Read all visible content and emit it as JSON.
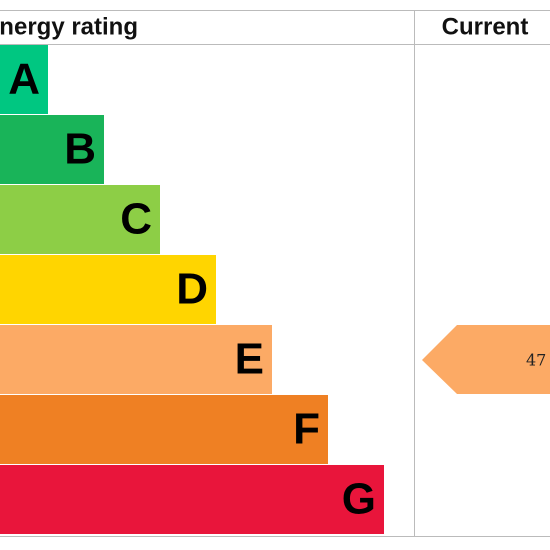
{
  "header": {
    "title": "Energy rating",
    "current": "Current"
  },
  "bands": [
    {
      "letter": "A",
      "color": "#00c781"
    },
    {
      "letter": "B",
      "color": "#19b459"
    },
    {
      "letter": "C",
      "color": "#8dce46"
    },
    {
      "letter": "D",
      "color": "#ffd500"
    },
    {
      "letter": "E",
      "color": "#fcaa65"
    },
    {
      "letter": "F",
      "color": "#ef8023"
    },
    {
      "letter": "G",
      "color": "#e9153b"
    }
  ],
  "current": {
    "value": 47,
    "band": "E"
  }
}
